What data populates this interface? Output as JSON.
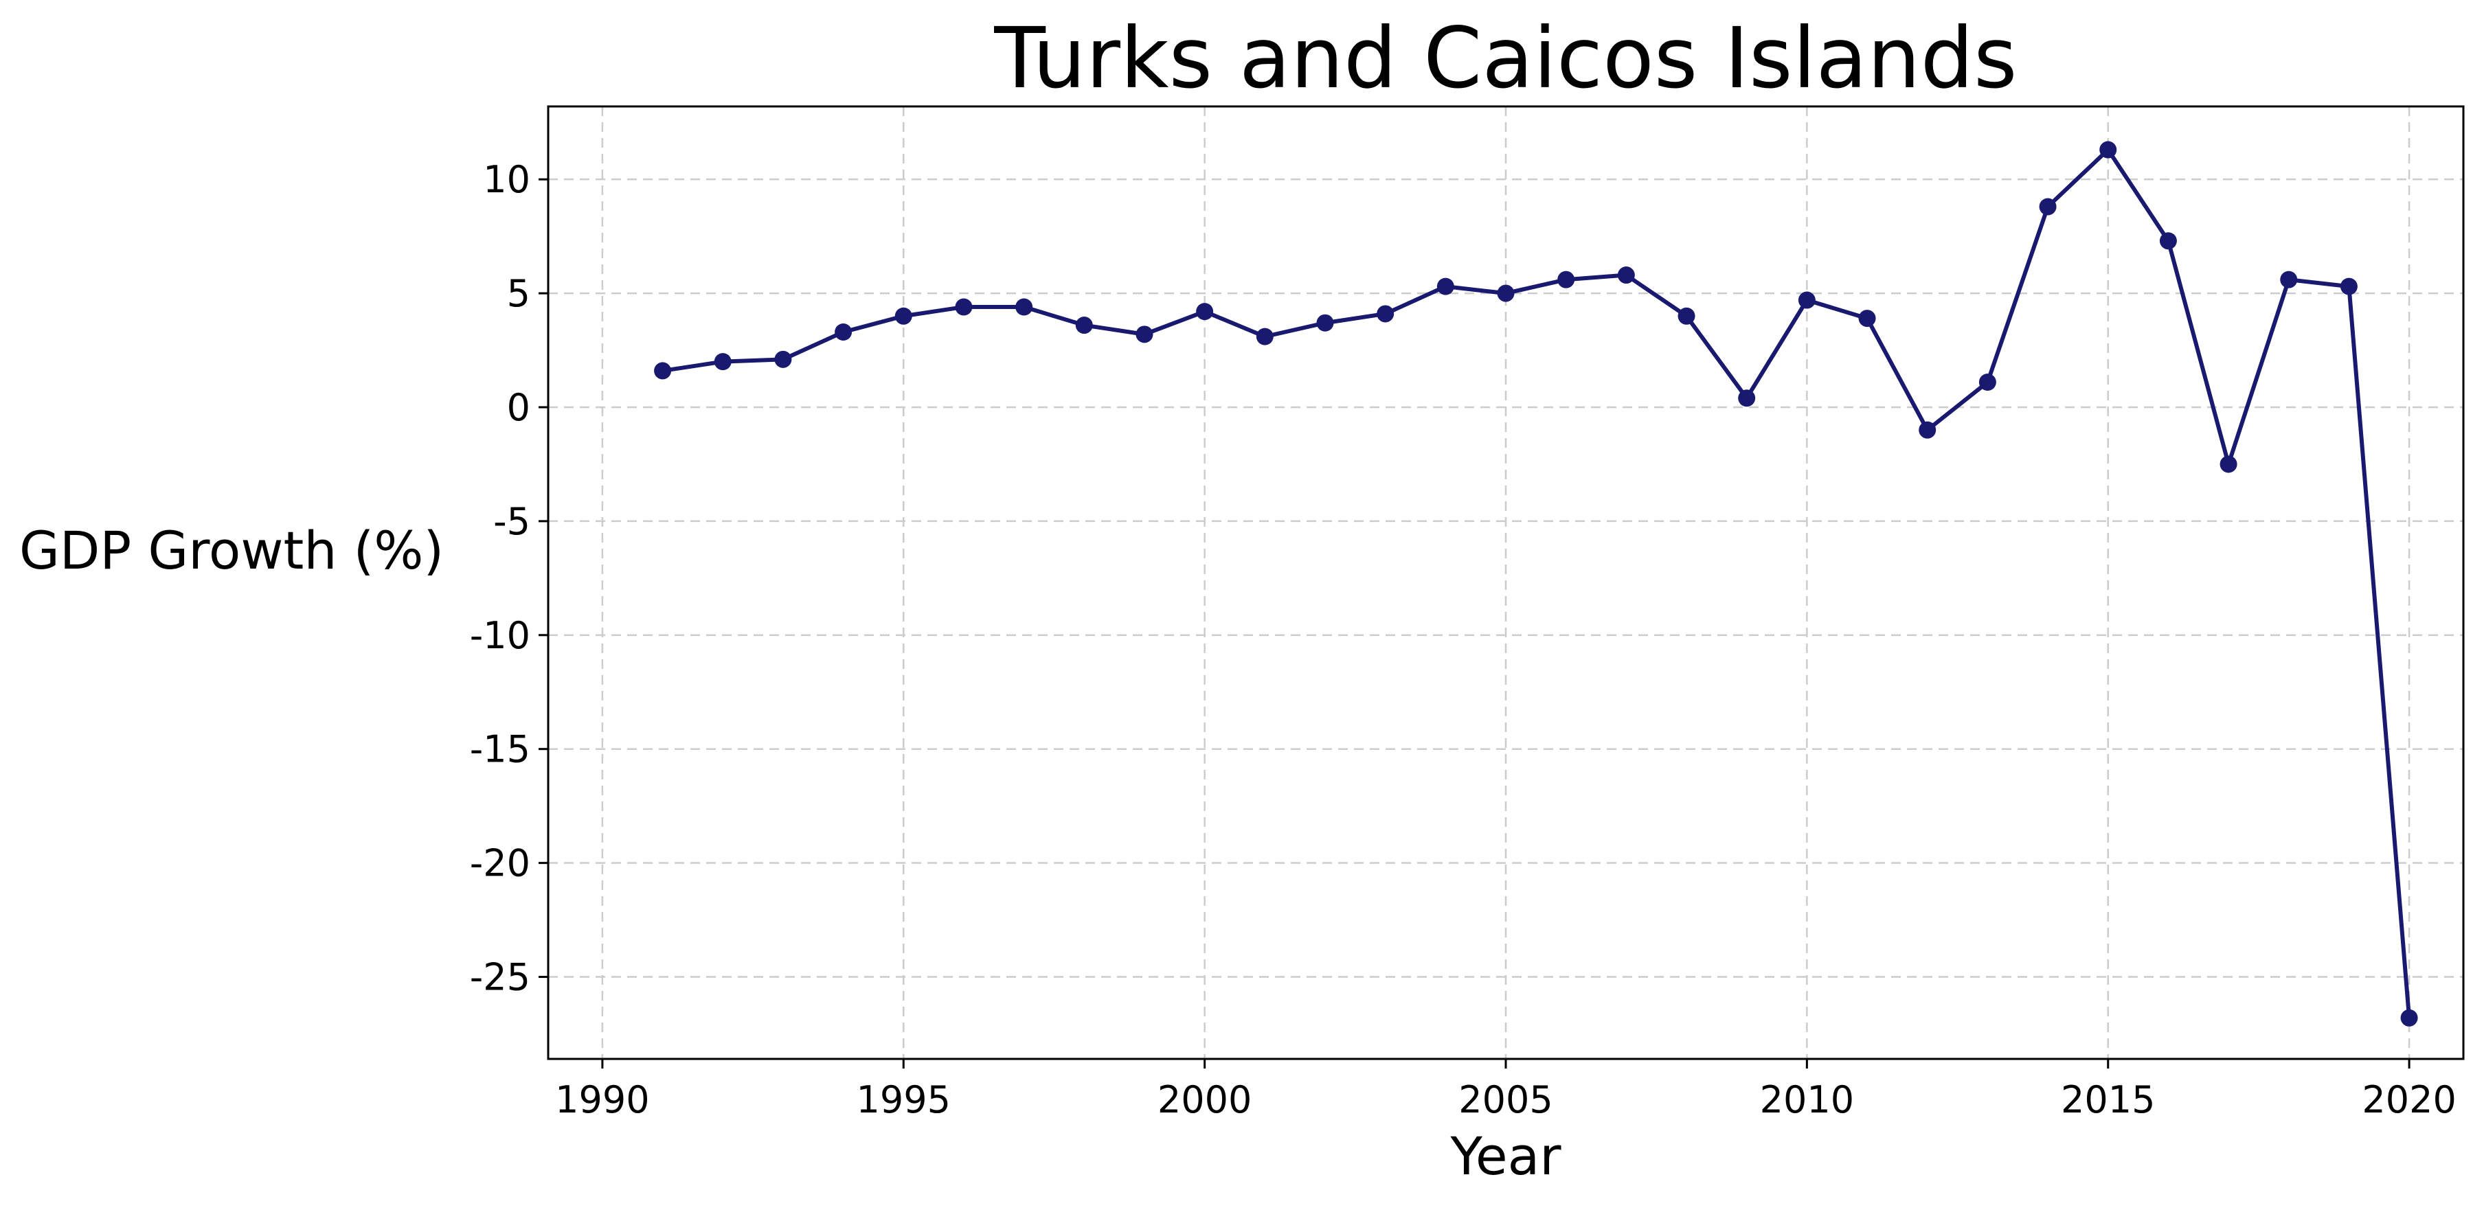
{
  "colors": {
    "line": "#191970",
    "grid": "#cccccc",
    "background": "#ffffff"
  },
  "chart_data": {
    "type": "line",
    "title": "Turks and Caicos Islands",
    "xlabel": "Year",
    "ylabel": "GDP Growth (%)",
    "xlim": [
      1989.1,
      2020.9
    ],
    "ylim": [
      -28.6,
      13.2
    ],
    "xticks": [
      1990,
      1995,
      2000,
      2005,
      2010,
      2015,
      2020
    ],
    "yticks": [
      10,
      5,
      0,
      -5,
      -10,
      -15,
      -20,
      -25
    ],
    "grid": true,
    "legend": "none",
    "marker": "circle",
    "series": [
      {
        "x": [
          1991,
          1992,
          1993,
          1994,
          1995,
          1996,
          1997,
          1998,
          1999,
          2000,
          2001,
          2002,
          2003,
          2004,
          2005,
          2006,
          2007,
          2008,
          2009,
          2010,
          2011,
          2012,
          2013,
          2014,
          2015,
          2016,
          2017,
          2018,
          2019,
          2020
        ],
        "values": [
          1.6,
          2.0,
          2.1,
          3.3,
          4.0,
          4.4,
          4.4,
          3.6,
          3.2,
          4.2,
          3.1,
          3.7,
          4.1,
          5.3,
          5.0,
          5.6,
          5.8,
          4.0,
          0.4,
          4.7,
          3.9,
          -1.0,
          1.1,
          8.8,
          11.3,
          7.3,
          -2.5,
          5.6,
          5.3,
          -26.8
        ]
      }
    ]
  }
}
